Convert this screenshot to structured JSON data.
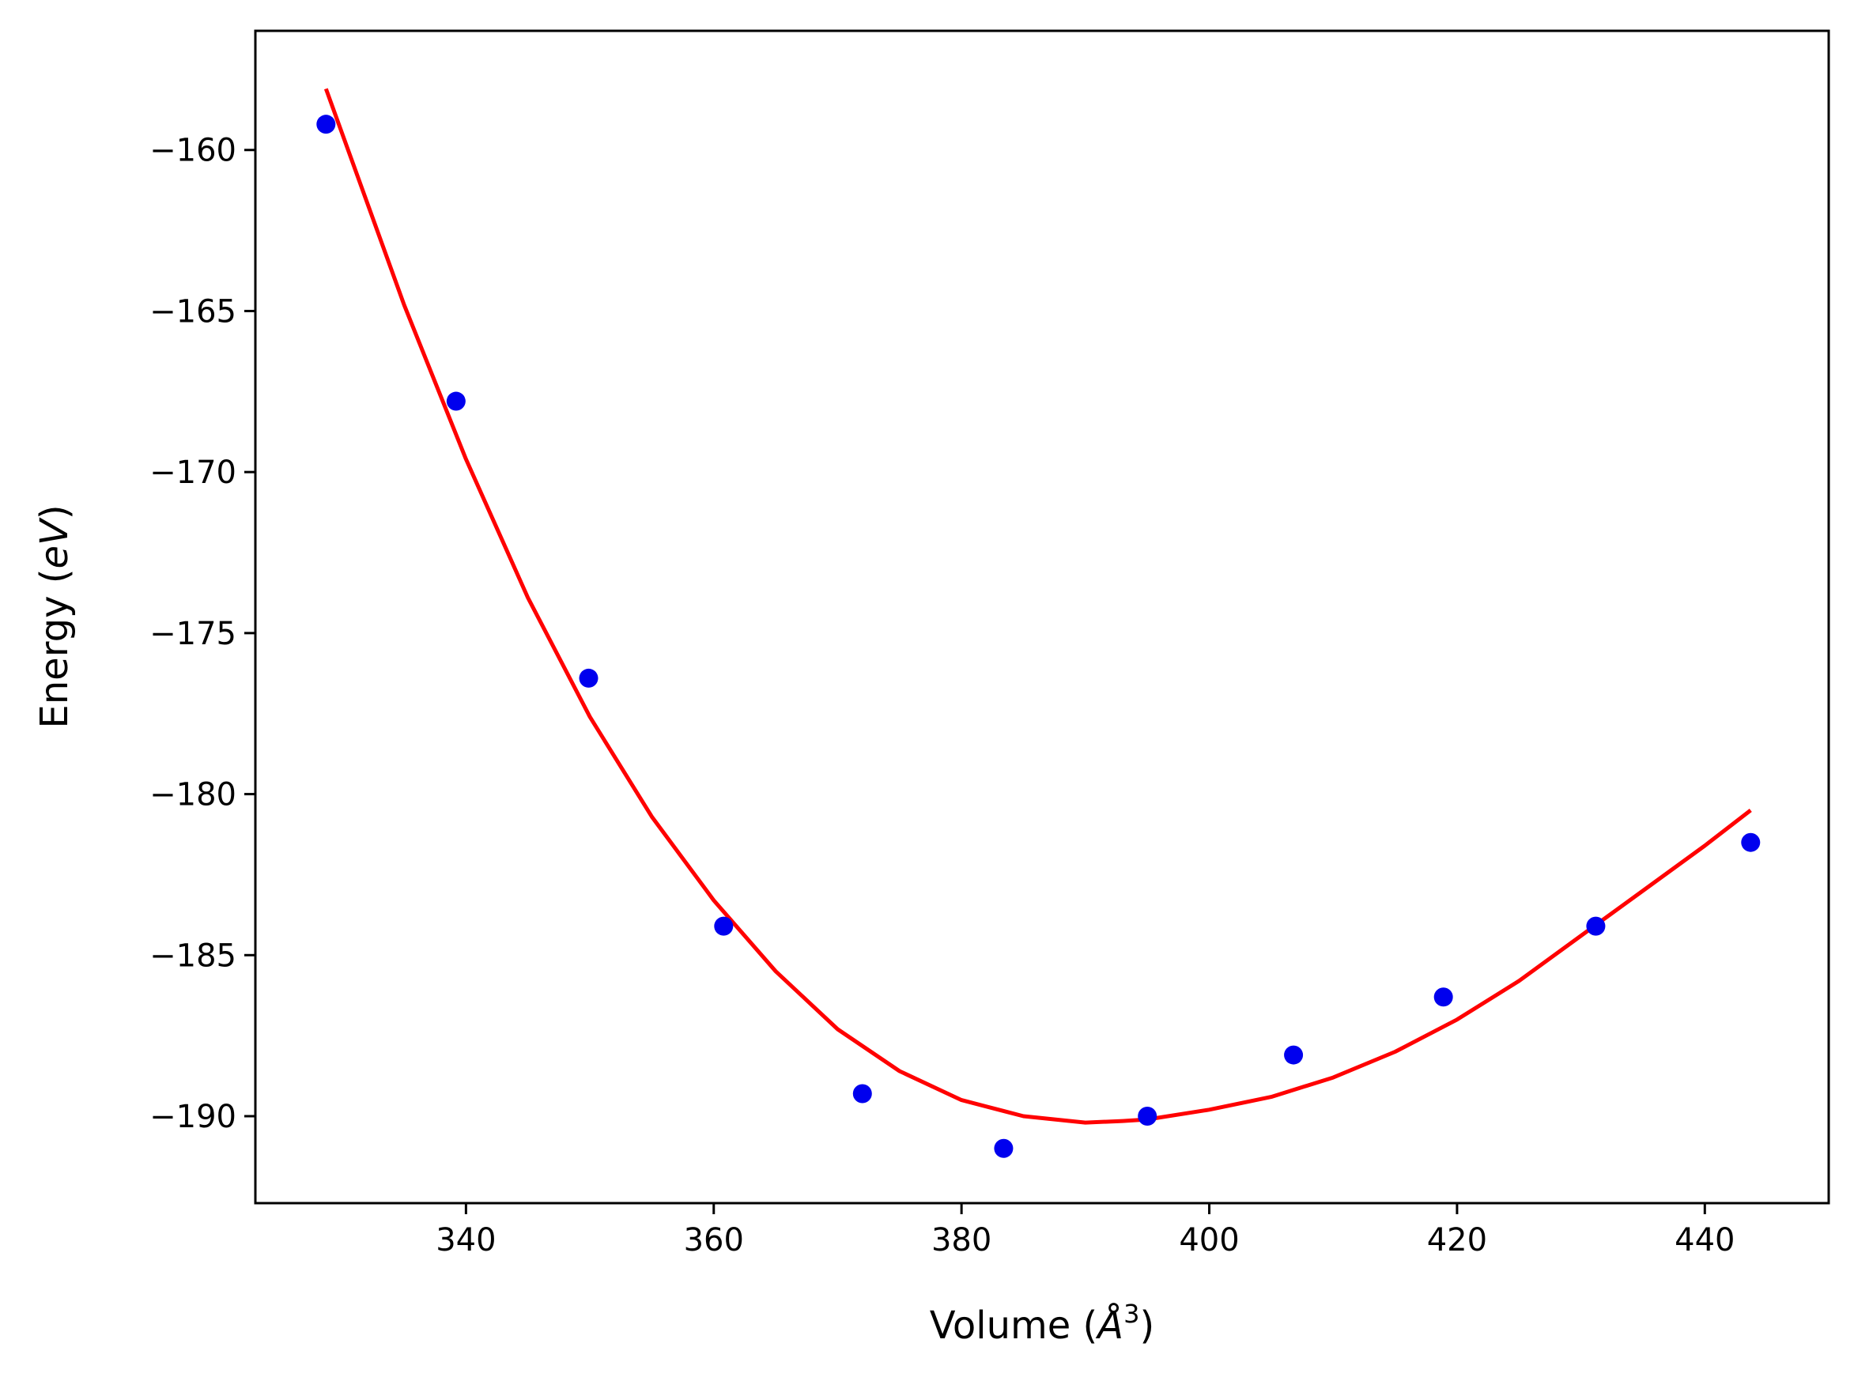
{
  "chart_data": {
    "type": "scatter",
    "title": "",
    "xlabel": "Volume (",
    "xlabel_symbol": "Å",
    "xlabel_exp": "3",
    "xlabel_close": ")",
    "ylabel": "Energy (",
    "ylabel_unit": "eV",
    "ylabel_close": ")",
    "xlim": [
      323,
      450
    ],
    "ylim": [
      -192.7,
      -156.3
    ],
    "xticks": [
      340,
      360,
      380,
      400,
      420,
      440
    ],
    "xtick_labels": [
      "340",
      "360",
      "380",
      "400",
      "420",
      "440"
    ],
    "yticks": [
      -160,
      -165,
      -170,
      -175,
      -180,
      -185,
      -190
    ],
    "ytick_labels": [
      "−160",
      "−165",
      "−170",
      "−175",
      "−180",
      "−185",
      "−190"
    ],
    "grid": false,
    "series": [
      {
        "kind": "points",
        "color": "#0000ee",
        "points": [
          {
            "x": 328.7,
            "y": -159.2
          },
          {
            "x": 339.2,
            "y": -167.8
          },
          {
            "x": 349.9,
            "y": -176.4
          },
          {
            "x": 360.8,
            "y": -184.1
          },
          {
            "x": 372.0,
            "y": -189.3
          },
          {
            "x": 383.4,
            "y": -191.0
          },
          {
            "x": 395.0,
            "y": -190.0
          },
          {
            "x": 406.8,
            "y": -188.1
          },
          {
            "x": 418.9,
            "y": -186.3
          },
          {
            "x": 431.2,
            "y": -184.1
          },
          {
            "x": 443.7,
            "y": -181.5
          }
        ]
      },
      {
        "kind": "fit-curve",
        "color": "#ff0000",
        "points": [
          {
            "x": 328.7,
            "y": -158.1
          },
          {
            "x": 335.0,
            "y": -164.8
          },
          {
            "x": 340.0,
            "y": -169.6
          },
          {
            "x": 345.0,
            "y": -173.9
          },
          {
            "x": 350.0,
            "y": -177.6
          },
          {
            "x": 355.0,
            "y": -180.7
          },
          {
            "x": 360.0,
            "y": -183.3
          },
          {
            "x": 365.0,
            "y": -185.5
          },
          {
            "x": 370.0,
            "y": -187.3
          },
          {
            "x": 375.0,
            "y": -188.6
          },
          {
            "x": 380.0,
            "y": -189.5
          },
          {
            "x": 385.0,
            "y": -190.0
          },
          {
            "x": 390.0,
            "y": -190.2
          },
          {
            "x": 393.0,
            "y": -190.15
          },
          {
            "x": 395.0,
            "y": -190.1
          },
          {
            "x": 400.0,
            "y": -189.8
          },
          {
            "x": 405.0,
            "y": -189.4
          },
          {
            "x": 410.0,
            "y": -188.8
          },
          {
            "x": 415.0,
            "y": -188.0
          },
          {
            "x": 420.0,
            "y": -187.0
          },
          {
            "x": 425.0,
            "y": -185.8
          },
          {
            "x": 430.0,
            "y": -184.4
          },
          {
            "x": 435.0,
            "y": -183.0
          },
          {
            "x": 440.0,
            "y": -181.6
          },
          {
            "x": 443.7,
            "y": -180.5
          }
        ]
      }
    ]
  }
}
